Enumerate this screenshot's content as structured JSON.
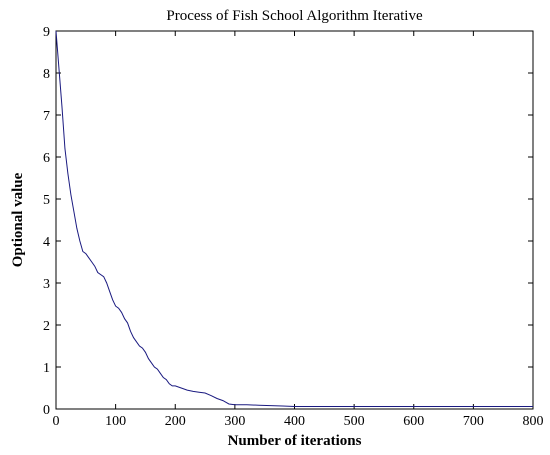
{
  "chart_data": {
    "type": "line",
    "title": "Process of Fish School Algorithm Iterative",
    "xlabel": "Number of iterations",
    "ylabel": "Optional value",
    "xlim": [
      0,
      800
    ],
    "ylim": [
      0,
      9
    ],
    "xticks": [
      0,
      100,
      200,
      300,
      400,
      500,
      600,
      700,
      800
    ],
    "yticks": [
      0,
      1,
      2,
      3,
      4,
      5,
      6,
      7,
      8,
      9
    ],
    "grid": false,
    "colors": {
      "line": "#1a1a80",
      "axes": "#000000",
      "background": "#ffffff"
    },
    "series": [
      {
        "x": [
          0,
          5,
          10,
          15,
          20,
          25,
          30,
          35,
          40,
          45,
          50,
          55,
          60,
          65,
          70,
          75,
          80,
          85,
          90,
          95,
          100,
          105,
          110,
          115,
          120,
          125,
          130,
          135,
          140,
          145,
          150,
          155,
          160,
          165,
          170,
          175,
          180,
          185,
          190,
          195,
          200,
          210,
          220,
          230,
          240,
          250,
          260,
          270,
          280,
          290,
          300,
          320,
          340,
          360,
          380,
          400,
          450,
          500,
          550,
          600,
          650,
          700,
          750,
          800
        ],
        "y": [
          9.0,
          8.1,
          7.2,
          6.2,
          5.6,
          5.1,
          4.7,
          4.3,
          4.0,
          3.75,
          3.7,
          3.6,
          3.5,
          3.4,
          3.25,
          3.2,
          3.15,
          3.0,
          2.8,
          2.6,
          2.45,
          2.4,
          2.3,
          2.15,
          2.05,
          1.85,
          1.7,
          1.6,
          1.5,
          1.45,
          1.35,
          1.2,
          1.1,
          1.0,
          0.95,
          0.85,
          0.75,
          0.7,
          0.6,
          0.55,
          0.55,
          0.5,
          0.45,
          0.42,
          0.4,
          0.38,
          0.32,
          0.25,
          0.2,
          0.12,
          0.1,
          0.1,
          0.09,
          0.08,
          0.07,
          0.06,
          0.06,
          0.06,
          0.06,
          0.06,
          0.06,
          0.06,
          0.06,
          0.06
        ]
      }
    ]
  }
}
